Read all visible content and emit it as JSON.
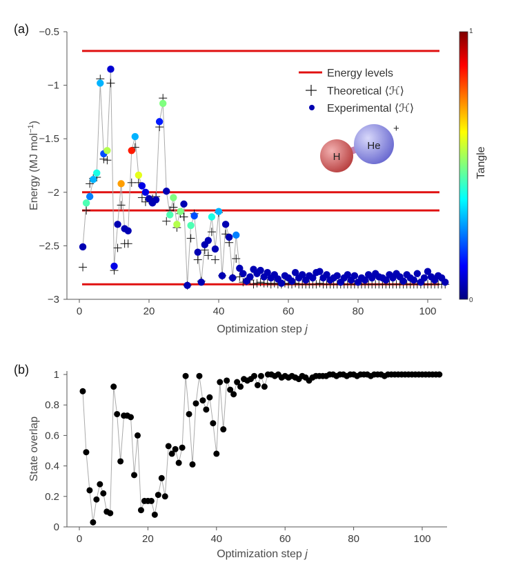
{
  "chart_data": [
    {
      "panel": "(a)",
      "type": "scatter",
      "xlabel": "Optimization step",
      "xlabel_var": "j",
      "ylabel": "Energy (MJ mol",
      "ylabel_sup": "−1",
      "ylabel_close": ")",
      "xlim": [
        0,
        106
      ],
      "ylim": [
        -3,
        -0.5
      ],
      "xticks": [
        0,
        20,
        40,
        60,
        80,
        100
      ],
      "xtick_labels": [
        "0",
        "20",
        "40",
        "60",
        "80",
        "100"
      ],
      "yticks": [
        -0.5,
        -1,
        -1.5,
        -2,
        -2.5,
        -3
      ],
      "ytick_labels": [
        "−0.5",
        "−1",
        "−1.5",
        "−2",
        "−2.5",
        "−3"
      ],
      "energy_levels": [
        -0.68,
        -2.0,
        -2.17,
        -2.86
      ],
      "level_color": "#e01010",
      "legend": {
        "levels": "Energy levels",
        "theoretical": "Theoretical ⟨ℋ⟩",
        "experimental": "Experimental ⟨ℋ⟩"
      },
      "molecule": {
        "left_atom": "H",
        "right_atom": "He",
        "charge": "+"
      },
      "colorbar": {
        "title": "Tangle",
        "max_label": "1",
        "min_label": "0"
      },
      "series": [
        {
          "name": "Experimental ⟨ℋ⟩",
          "x": [
            1,
            2,
            3,
            4,
            5,
            6,
            7,
            8,
            9,
            10,
            11,
            12,
            13,
            14,
            15,
            16,
            17,
            18,
            19,
            20,
            21,
            22,
            23,
            24,
            25,
            26,
            27,
            28,
            29,
            30,
            31,
            32,
            33,
            34,
            35,
            36,
            37,
            38,
            39,
            40,
            41,
            42,
            43,
            44,
            45,
            46,
            47,
            48,
            49,
            50,
            51,
            52,
            53,
            54,
            55,
            56,
            57,
            58,
            59,
            60,
            61,
            62,
            63,
            64,
            65,
            66,
            67,
            68,
            69,
            70,
            71,
            72,
            73,
            74,
            75,
            76,
            77,
            78,
            79,
            80,
            81,
            82,
            83,
            84,
            85,
            86,
            87,
            88,
            89,
            90,
            91,
            92,
            93,
            94,
            95,
            96,
            97,
            98,
            99,
            100,
            101,
            102,
            103,
            104,
            105
          ],
          "y": [
            -2.51,
            -2.1,
            -2.04,
            -1.88,
            -1.82,
            -0.98,
            -1.64,
            -1.61,
            -0.85,
            -2.69,
            -2.3,
            -1.92,
            -2.34,
            -2.36,
            -1.61,
            -1.48,
            -1.84,
            -1.94,
            -2.0,
            -2.06,
            -2.1,
            -2.07,
            -1.34,
            -1.17,
            -1.99,
            -2.21,
            -2.05,
            -2.3,
            -2.18,
            -2.11,
            -2.87,
            -2.31,
            -2.22,
            -2.56,
            -2.84,
            -2.49,
            -2.45,
            -2.23,
            -2.53,
            -2.18,
            -2.78,
            -2.3,
            -2.42,
            -2.8,
            -2.4,
            -2.71,
            -2.76,
            -2.83,
            -2.79,
            -2.72,
            -2.76,
            -2.73,
            -2.79,
            -2.75,
            -2.8,
            -2.77,
            -2.81,
            -2.85,
            -2.78,
            -2.8,
            -2.83,
            -2.75,
            -2.8,
            -2.77,
            -2.82,
            -2.78,
            -2.8,
            -2.75,
            -2.74,
            -2.8,
            -2.77,
            -2.82,
            -2.8,
            -2.78,
            -2.84,
            -2.8,
            -2.77,
            -2.82,
            -2.78,
            -2.84,
            -2.8,
            -2.82,
            -2.77,
            -2.8,
            -2.76,
            -2.79,
            -2.8,
            -2.82,
            -2.77,
            -2.8,
            -2.76,
            -2.79,
            -2.83,
            -2.77,
            -2.8,
            -2.82,
            -2.76,
            -2.84,
            -2.8,
            -2.74,
            -2.79,
            -2.82,
            -2.78,
            -2.8,
            -2.84
          ],
          "tangle": [
            0.05,
            0.45,
            0.25,
            0.3,
            0.4,
            0.3,
            0.2,
            0.55,
            0.08,
            0.1,
            0.05,
            0.72,
            0.05,
            0.05,
            0.85,
            0.3,
            0.6,
            0.1,
            0.1,
            0.05,
            0.05,
            0.05,
            0.15,
            0.5,
            0.05,
            0.45,
            0.5,
            0.55,
            0.5,
            0.05,
            0.05,
            0.45,
            0.2,
            0.05,
            0.05,
            0.05,
            0.05,
            0.4,
            0.05,
            0.3,
            0.05,
            0.05,
            0.05,
            0.05,
            0.25,
            0.05,
            0.05,
            0.05,
            0.05,
            0.05,
            0.05,
            0.05,
            0.05,
            0.05,
            0.05,
            0.05,
            0.05,
            0.05,
            0.05,
            0.05,
            0.05,
            0.05,
            0.05,
            0.05,
            0.05,
            0.05,
            0.05,
            0.05,
            0.05,
            0.05,
            0.05,
            0.05,
            0.05,
            0.05,
            0.05,
            0.05,
            0.05,
            0.05,
            0.05,
            0.05,
            0.05,
            0.05,
            0.05,
            0.05,
            0.05,
            0.05,
            0.05,
            0.05,
            0.05,
            0.05,
            0.05,
            0.05,
            0.05,
            0.05,
            0.05,
            0.05,
            0.05,
            0.05,
            0.05,
            0.05,
            0.05,
            0.05,
            0.05,
            0.05,
            0.05
          ]
        },
        {
          "name": "Theoretical ⟨ℋ⟩",
          "x": [
            1,
            2,
            3,
            4,
            5,
            6,
            7,
            8,
            9,
            10,
            11,
            12,
            13,
            14,
            15,
            16,
            17,
            18,
            19,
            20,
            21,
            22,
            23,
            24,
            25,
            26,
            27,
            28,
            29,
            30,
            31,
            32,
            33,
            34,
            35,
            36,
            37,
            38,
            39,
            40,
            41,
            42,
            43,
            44,
            45,
            46,
            47,
            48,
            49,
            50,
            51,
            52,
            53,
            54,
            55,
            56,
            57,
            58,
            59,
            60,
            61,
            62,
            63,
            64,
            65,
            66,
            67,
            68,
            69,
            70,
            71,
            72,
            73,
            74,
            75,
            76,
            77,
            78,
            79,
            80,
            81,
            82,
            83,
            84,
            85,
            86,
            87,
            88,
            89,
            90,
            91,
            92,
            93,
            94,
            95,
            96,
            97,
            98,
            99,
            100,
            101,
            102,
            103,
            104,
            105
          ],
          "y": [
            -2.7,
            -2.17,
            -1.92,
            -1.87,
            -1.86,
            -0.94,
            -1.69,
            -1.7,
            -0.98,
            -2.73,
            -2.52,
            -2.12,
            -2.48,
            -2.48,
            -1.91,
            -1.58,
            -1.91,
            -2.05,
            -2.09,
            -2.07,
            -2.06,
            -2.04,
            -1.39,
            -1.12,
            -2.27,
            -2.17,
            -2.14,
            -2.33,
            -2.2,
            -2.23,
            -2.87,
            -2.43,
            -2.2,
            -2.63,
            -2.83,
            -2.54,
            -2.59,
            -2.37,
            -2.63,
            -2.19,
            -2.78,
            -2.39,
            -2.47,
            -2.8,
            -2.62,
            -2.79,
            -2.84,
            -2.83,
            -2.82,
            -2.86,
            -2.85,
            -2.84,
            -2.85,
            -2.85,
            -2.86,
            -2.85,
            -2.86,
            -2.86,
            -2.85,
            -2.86,
            -2.86,
            -2.85,
            -2.86,
            -2.86,
            -2.86,
            -2.86,
            -2.86,
            -2.86,
            -2.85,
            -2.86,
            -2.86,
            -2.86,
            -2.86,
            -2.86,
            -2.86,
            -2.86,
            -2.86,
            -2.86,
            -2.86,
            -2.86,
            -2.86,
            -2.86,
            -2.86,
            -2.86,
            -2.86,
            -2.86,
            -2.86,
            -2.86,
            -2.86,
            -2.86,
            -2.86,
            -2.86,
            -2.86,
            -2.86,
            -2.86,
            -2.86,
            -2.86,
            -2.86,
            -2.86,
            -2.86,
            -2.86,
            -2.86,
            -2.86,
            -2.86,
            -2.86
          ]
        }
      ]
    },
    {
      "panel": "(b)",
      "type": "scatter",
      "xlabel": "Optimization step",
      "xlabel_var": "j",
      "ylabel": "State overlap",
      "xlim": [
        0,
        106
      ],
      "ylim": [
        0,
        1
      ],
      "xticks": [
        0,
        20,
        40,
        60,
        80,
        100
      ],
      "xtick_labels": [
        "0",
        "20",
        "40",
        "60",
        "80",
        "100"
      ],
      "yticks": [
        0,
        0.2,
        0.4,
        0.6,
        0.8,
        1
      ],
      "ytick_labels": [
        "0",
        "0.2",
        "0.4",
        "0.6",
        "0.8",
        "1"
      ],
      "series": [
        {
          "name": "State overlap",
          "x": [
            1,
            2,
            3,
            4,
            5,
            6,
            7,
            8,
            9,
            10,
            11,
            12,
            13,
            14,
            15,
            16,
            17,
            18,
            19,
            20,
            21,
            22,
            23,
            24,
            25,
            26,
            27,
            28,
            29,
            30,
            31,
            32,
            33,
            34,
            35,
            36,
            37,
            38,
            39,
            40,
            41,
            42,
            43,
            44,
            45,
            46,
            47,
            48,
            49,
            50,
            51,
            52,
            53,
            54,
            55,
            56,
            57,
            58,
            59,
            60,
            61,
            62,
            63,
            64,
            65,
            66,
            67,
            68,
            69,
            70,
            71,
            72,
            73,
            74,
            75,
            76,
            77,
            78,
            79,
            80,
            81,
            82,
            83,
            84,
            85,
            86,
            87,
            88,
            89,
            90,
            91,
            92,
            93,
            94,
            95,
            96,
            97,
            98,
            99,
            100,
            101,
            102,
            103,
            104,
            105
          ],
          "y": [
            0.89,
            0.49,
            0.24,
            0.03,
            0.18,
            0.28,
            0.22,
            0.1,
            0.09,
            0.92,
            0.74,
            0.43,
            0.73,
            0.73,
            0.72,
            0.34,
            0.6,
            0.11,
            0.17,
            0.17,
            0.17,
            0.08,
            0.21,
            0.32,
            0.2,
            0.53,
            0.48,
            0.51,
            0.42,
            0.52,
            0.99,
            0.74,
            0.41,
            0.81,
            0.99,
            0.83,
            0.77,
            0.85,
            0.68,
            0.48,
            0.95,
            0.64,
            0.96,
            0.9,
            0.87,
            0.95,
            0.92,
            0.97,
            0.96,
            0.97,
            0.99,
            0.93,
            0.99,
            0.92,
            1.0,
            1.0,
            0.99,
            1.0,
            0.98,
            0.99,
            0.98,
            0.99,
            0.98,
            0.97,
            0.99,
            0.98,
            0.96,
            0.98,
            0.99,
            0.99,
            0.99,
            0.99,
            1.0,
            1.0,
            0.99,
            1.0,
            1.0,
            0.99,
            1.0,
            1.0,
            0.99,
            1.0,
            1.0,
            1.0,
            0.99,
            1.0,
            1.0,
            1.0,
            0.99,
            1.0,
            1.0,
            1.0,
            1.0,
            1.0,
            1.0,
            1.0,
            1.0,
            1.0,
            1.0,
            1.0,
            1.0,
            1.0,
            1.0,
            1.0,
            1.0
          ]
        }
      ]
    }
  ]
}
